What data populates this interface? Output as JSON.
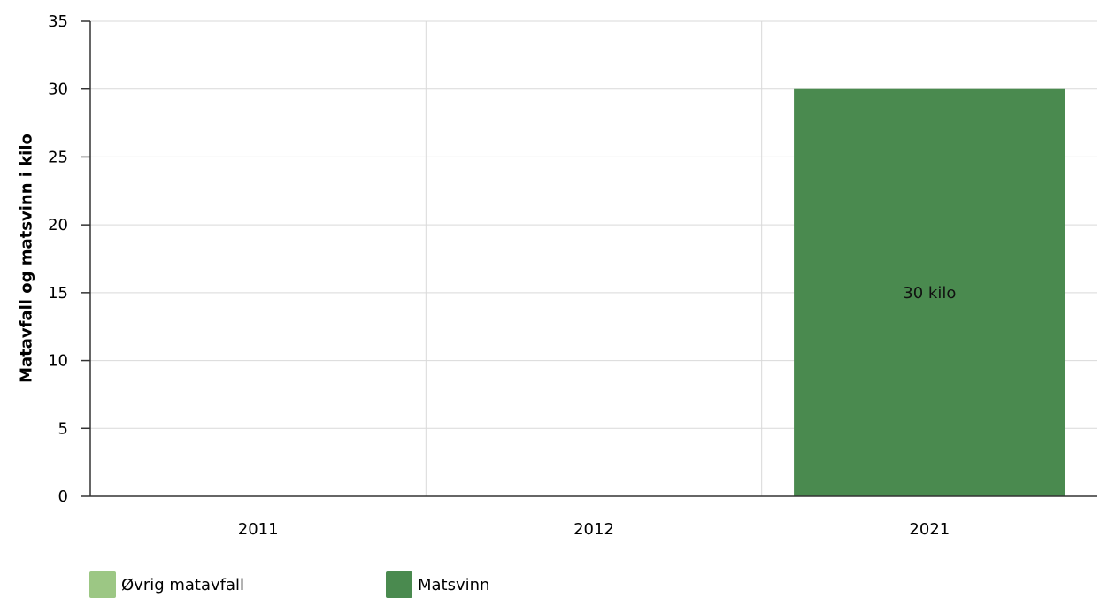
{
  "chart_data": {
    "type": "bar",
    "stacked": true,
    "categories": [
      "2011",
      "2012",
      "2021"
    ],
    "series": [
      {
        "name": "Øvrig matavfall",
        "values": [
          0,
          0,
          0
        ],
        "color": "#9cc784"
      },
      {
        "name": "Matsvinn",
        "values": [
          0,
          0,
          30
        ],
        "color": "#4a8a4f"
      }
    ],
    "data_labels": [
      "",
      "",
      "30 kilo"
    ],
    "ylabel": "Matavfall og matsvinn i kilo",
    "ylim": [
      0,
      35
    ],
    "yticks": [
      0,
      5,
      10,
      15,
      20,
      25,
      30,
      35
    ],
    "grid": true,
    "legend_position": "bottom-left"
  }
}
